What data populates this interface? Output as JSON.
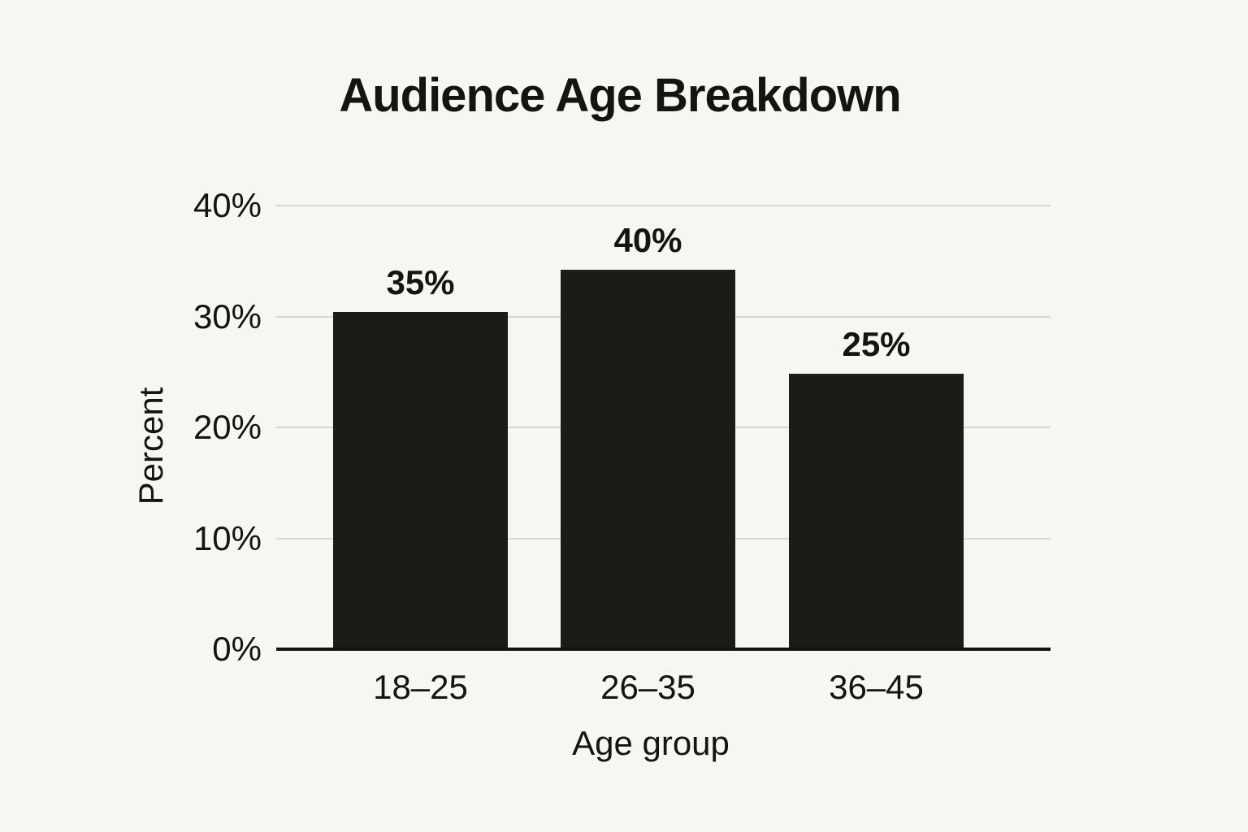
{
  "chart_data": {
    "type": "bar",
    "title": "Audience Age Breakdown",
    "categories": [
      "18–25",
      "26–35",
      "36–45"
    ],
    "values": [
      35,
      40,
      25
    ],
    "value_labels": [
      "35%",
      "40%",
      "25%"
    ],
    "visual_bar_heights_pct": [
      30.4,
      34.2,
      24.8
    ],
    "xlabel": "Age group",
    "ylabel": "Percent",
    "ylim": [
      0,
      40
    ],
    "ytick_values": [
      0,
      10,
      20,
      30,
      40
    ],
    "ytick_labels": [
      "0%",
      "10%",
      "20%",
      "30%",
      "40%"
    ],
    "grid": "horizontal-gridlines",
    "legend_position": "none",
    "colors": {
      "background": "#f8f6f1",
      "bar": "#1c1b18",
      "gridline": "#d7d6d2",
      "axis_line": "#15140f",
      "text": "#15140f"
    }
  }
}
